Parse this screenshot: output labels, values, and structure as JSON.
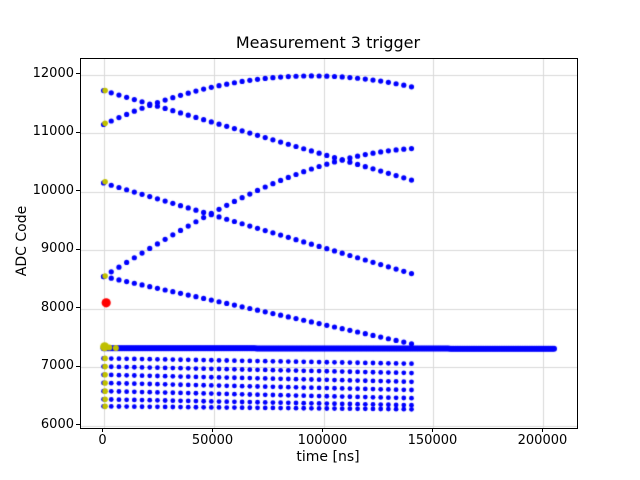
{
  "chart_data": {
    "type": "scatter",
    "title": "Measurement 3 trigger",
    "xlabel": "time [ns]",
    "ylabel": "ADC Code",
    "xlim": [
      -10250,
      215250
    ],
    "ylim": [
      5960,
      12270
    ],
    "xticks": [
      0,
      50000,
      100000,
      150000,
      200000
    ],
    "yticks": [
      6000,
      7000,
      8000,
      9000,
      10000,
      11000,
      12000
    ],
    "grid": true,
    "grid_color": "#d9d9d9",
    "colors": {
      "samples": "#0000ff",
      "start_markers": "#bfbf00",
      "trigger_marker": "#ff0000"
    },
    "series": [
      {
        "name": "trigger-band-flat",
        "kind": "dense",
        "x_start": 0,
        "x_end": 205000,
        "step": 800,
        "y_start": 7325,
        "y_end": 7315,
        "size": 3
      },
      {
        "name": "top-rising-arc",
        "kind": "points",
        "x0": 0,
        "dx": 3500,
        "size": 2.6,
        "ys": [
          11150,
          11210,
          11268,
          11323,
          11377,
          11428,
          11476,
          11523,
          11567,
          11609,
          11649,
          11686,
          11722,
          11755,
          11785,
          11814,
          11840,
          11864,
          11886,
          11905,
          11922,
          11938,
          11950,
          11961,
          11969,
          11975,
          11979,
          11980,
          11979,
          11976,
          11971,
          11963,
          11953,
          11941,
          11927,
          11910,
          11892,
          11871,
          11847,
          11822,
          11794
        ]
      },
      {
        "name": "top-falling-line",
        "kind": "linear",
        "x0": 0,
        "dx": 3500,
        "n": 41,
        "y_start": 11730,
        "y_end": 10200,
        "size": 2.6
      },
      {
        "name": "mid-falling-line",
        "kind": "linear",
        "x0": 0,
        "dx": 3500,
        "n": 41,
        "y_start": 10150,
        "y_end": 8600,
        "size": 2.6
      },
      {
        "name": "mid-rising-arc",
        "kind": "points",
        "x0": 0,
        "dx": 3500,
        "size": 2.6,
        "ys": [
          8550,
          8631,
          8711,
          8792,
          8871,
          8951,
          9030,
          9108,
          9186,
          9263,
          9338,
          9413,
          9487,
          9559,
          9630,
          9700,
          9767,
          9834,
          9898,
          9961,
          10022,
          10081,
          10138,
          10193,
          10245,
          10295,
          10343,
          10389,
          10432,
          10472,
          10510,
          10545,
          10578,
          10608,
          10635,
          10659,
          10681,
          10700,
          10715,
          10728,
          10739
        ]
      },
      {
        "name": "low-falling-line",
        "kind": "linear",
        "x0": 0,
        "dx": 3500,
        "n": 41,
        "y_start": 8550,
        "y_end": 7400,
        "size": 2.6
      },
      {
        "name": "low-row-1",
        "kind": "linear",
        "x0": 0,
        "dx": 3500,
        "n": 41,
        "y_start": 7150,
        "y_end": 7060,
        "size": 2.4
      },
      {
        "name": "low-row-2",
        "kind": "linear",
        "x0": 0,
        "dx": 3500,
        "n": 41,
        "y_start": 7010,
        "y_end": 6900,
        "size": 2.4
      },
      {
        "name": "low-row-3",
        "kind": "linear",
        "x0": 0,
        "dx": 3500,
        "n": 41,
        "y_start": 6870,
        "y_end": 6750,
        "size": 2.4
      },
      {
        "name": "low-row-4",
        "kind": "linear",
        "x0": 0,
        "dx": 3500,
        "n": 41,
        "y_start": 6730,
        "y_end": 6610,
        "size": 2.4
      },
      {
        "name": "low-row-5",
        "kind": "linear",
        "x0": 0,
        "dx": 3500,
        "n": 41,
        "y_start": 6590,
        "y_end": 6470,
        "size": 2.4
      },
      {
        "name": "low-row-6",
        "kind": "linear",
        "x0": 0,
        "dx": 3500,
        "n": 41,
        "y_start": 6450,
        "y_end": 6350,
        "size": 2.4
      },
      {
        "name": "low-row-7",
        "kind": "linear",
        "x0": 0,
        "dx": 3500,
        "n": 41,
        "y_start": 6330,
        "y_end": 6280,
        "size": 2.4
      }
    ],
    "start_points": {
      "color": "#bfbf00",
      "points": [
        [
          700,
          11730,
          2.8
        ],
        [
          700,
          11170,
          2.8
        ],
        [
          700,
          10170,
          2.8
        ],
        [
          700,
          8560,
          2.8
        ],
        [
          500,
          7350,
          4.5
        ],
        [
          2600,
          7335,
          3.0
        ],
        [
          5600,
          7330,
          3.0
        ],
        [
          700,
          7150,
          2.8
        ],
        [
          700,
          7010,
          2.8
        ],
        [
          700,
          6870,
          2.8
        ],
        [
          700,
          6730,
          2.8
        ],
        [
          700,
          6590,
          2.8
        ],
        [
          700,
          6450,
          2.8
        ],
        [
          700,
          6330,
          2.8
        ]
      ]
    },
    "trigger_point": {
      "color": "#ff0000",
      "x": 1200,
      "y": 8100,
      "size": 4.6
    }
  }
}
